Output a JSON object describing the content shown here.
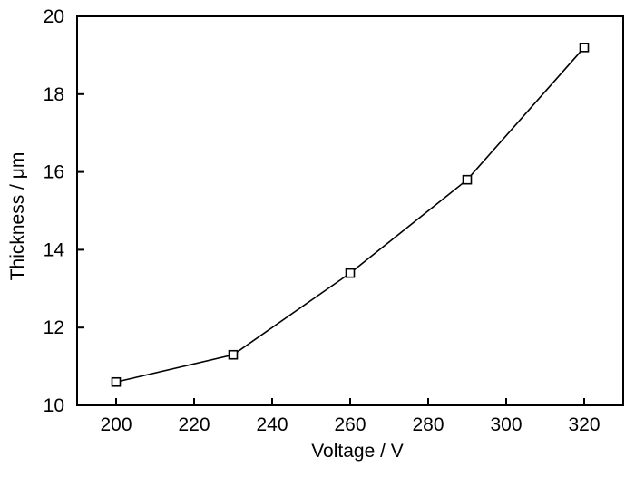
{
  "chart_data": {
    "type": "line",
    "title": "",
    "xlabel": "Voltage / V",
    "ylabel": "Thickness / μm",
    "x": [
      200,
      230,
      260,
      290,
      320
    ],
    "y": [
      10.6,
      11.3,
      13.4,
      15.8,
      19.2
    ],
    "xlim": [
      190,
      330
    ],
    "ylim": [
      10,
      20
    ],
    "xticks": [
      200,
      220,
      240,
      260,
      280,
      300,
      320
    ],
    "yticks": [
      10,
      12,
      14,
      16,
      18,
      20
    ],
    "grid": false,
    "legend_position": "none",
    "marker": "open-square",
    "line_color": "#000000",
    "marker_fill": "#ffffff",
    "marker_stroke": "#000000",
    "axis_color": "#000000",
    "background": "#ffffff",
    "tick_direction": "in"
  }
}
